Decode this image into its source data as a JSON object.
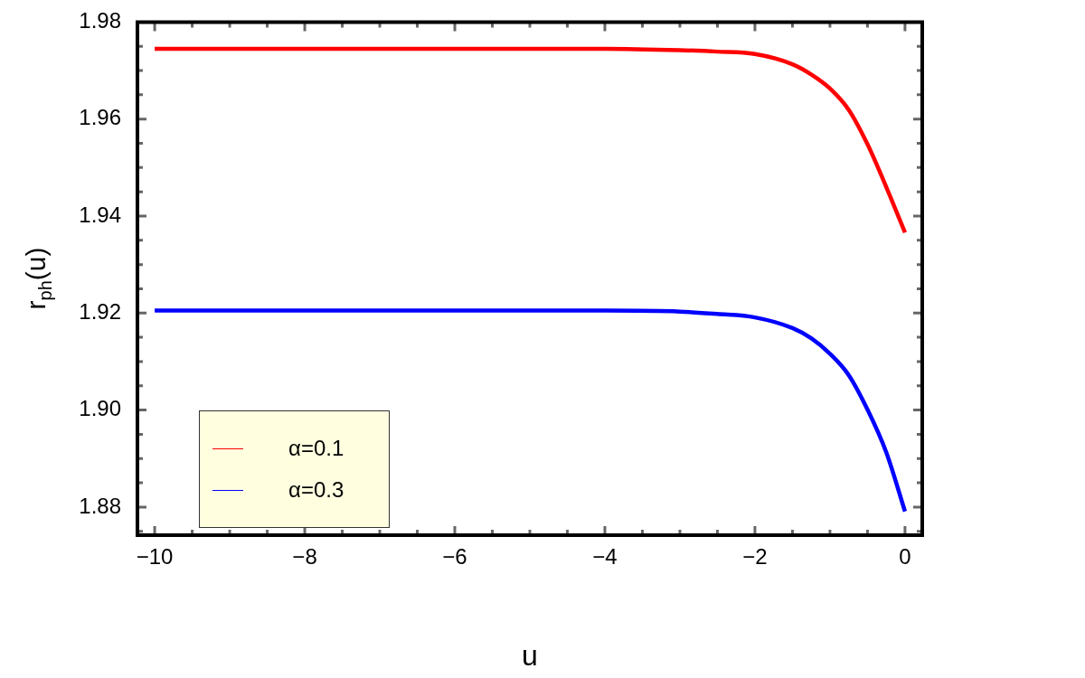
{
  "chart_data": {
    "type": "line",
    "xlabel": "u",
    "ylabel": "r$_{ph}$(u)",
    "x": [
      -10,
      -8,
      -6,
      -4,
      -3,
      -2.5,
      -2,
      -1.5,
      -1.25,
      -1,
      -0.75,
      -0.5,
      -0.25,
      0
    ],
    "series": [
      {
        "name": "α=0.1",
        "color": "#ff0000",
        "values": [
          1.9745,
          1.9745,
          1.9745,
          1.9745,
          1.9742,
          1.9739,
          1.9734,
          1.9713,
          1.9692,
          1.9663,
          1.9619,
          1.9548,
          1.946,
          1.9366
        ]
      },
      {
        "name": "α=0.3",
        "color": "#0000ff",
        "values": [
          1.9205,
          1.9205,
          1.9205,
          1.9205,
          1.9203,
          1.9198,
          1.9191,
          1.9169,
          1.9148,
          1.9116,
          1.9072,
          1.9001,
          1.8913,
          1.8791
        ]
      }
    ],
    "xlim": [
      -10.23,
      0.23
    ],
    "xticks": [
      -10,
      {
        "value": -9.5,
        "label": null
      },
      {
        "value": -9,
        "label": null
      },
      {
        "value": -8.5,
        "label": null
      },
      -8,
      {
        "value": -7.5,
        "label": null
      },
      {
        "value": -7,
        "label": null
      },
      {
        "value": -6.5,
        "label": null
      },
      -6,
      {
        "value": -5.5,
        "label": null
      },
      {
        "value": -5,
        "label": null
      },
      {
        "value": -4.5,
        "label": null
      },
      -4,
      {
        "value": -3.5,
        "label": null
      },
      {
        "value": -3,
        "label": null
      },
      {
        "value": -2.5,
        "label": null
      },
      -2,
      {
        "value": -1.5,
        "label": null
      },
      {
        "value": -1,
        "label": null
      },
      {
        "value": -0.5,
        "label": null
      },
      0
    ],
    "ylim": [
      1.8742,
      1.98
    ],
    "yticks": [
      {
        "value": 1.875,
        "label": null
      },
      {
        "value": 1.88,
        "label": "1.88"
      },
      {
        "value": 1.885,
        "label": null
      },
      {
        "value": 1.89,
        "label": null
      },
      {
        "value": 1.895,
        "label": null
      },
      {
        "value": 1.9,
        "label": "1.90"
      },
      {
        "value": 1.905,
        "label": null
      },
      {
        "value": 1.91,
        "label": null
      },
      {
        "value": 1.915,
        "label": null
      },
      {
        "value": 1.92,
        "label": "1.92"
      },
      {
        "value": 1.925,
        "label": null
      },
      {
        "value": 1.93,
        "label": null
      },
      {
        "value": 1.935,
        "label": null
      },
      {
        "value": 1.94,
        "label": "1.94"
      },
      {
        "value": 1.945,
        "label": null
      },
      {
        "value": 1.95,
        "label": null
      },
      {
        "value": 1.955,
        "label": null
      },
      {
        "value": 1.96,
        "label": "1.96"
      },
      {
        "value": 1.965,
        "label": null
      },
      {
        "value": 1.97,
        "label": null
      },
      {
        "value": 1.975,
        "label": null
      },
      {
        "value": 1.98,
        "label": "1.98"
      }
    ],
    "grid": false,
    "legend": "bottom left",
    "marker": "none",
    "line_style": "solid"
  }
}
